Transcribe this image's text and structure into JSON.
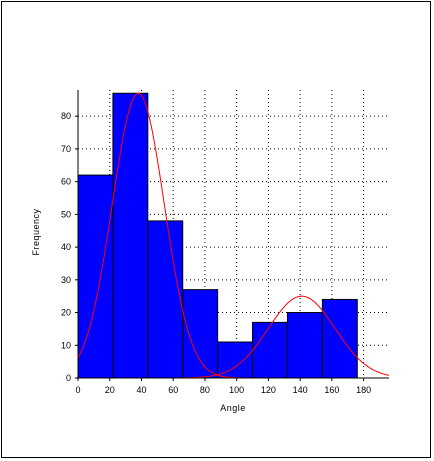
{
  "chart_data": {
    "type": "bar",
    "xlabel": "Angle",
    "ylabel": "Frequency",
    "xlim": [
      0,
      196
    ],
    "ylim": [
      0,
      88
    ],
    "grid": true,
    "xticks": [
      0,
      20,
      40,
      60,
      80,
      100,
      120,
      140,
      160,
      180
    ],
    "yticks": [
      0,
      10,
      20,
      30,
      40,
      50,
      60,
      70,
      80
    ],
    "bins": [
      {
        "start": 0,
        "end": 22,
        "value": 62
      },
      {
        "start": 22,
        "end": 44,
        "value": 87
      },
      {
        "start": 44,
        "end": 66,
        "value": 48
      },
      {
        "start": 66,
        "end": 88,
        "value": 27
      },
      {
        "start": 88,
        "end": 110,
        "value": 11
      },
      {
        "start": 110,
        "end": 132,
        "value": 17
      },
      {
        "start": 132,
        "end": 154,
        "value": 20
      },
      {
        "start": 154,
        "end": 176,
        "value": 24
      }
    ],
    "fit_curves": [
      {
        "peak_x": 38,
        "peak_y": 87,
        "sigma": 16.5,
        "color": "#ff0000"
      },
      {
        "peak_x": 141,
        "peak_y": 25,
        "sigma": 21,
        "color": "#ff0000"
      }
    ],
    "bar_color": "#0000ff",
    "bar_edge_color": "#000000",
    "grid_color": "#000000"
  }
}
